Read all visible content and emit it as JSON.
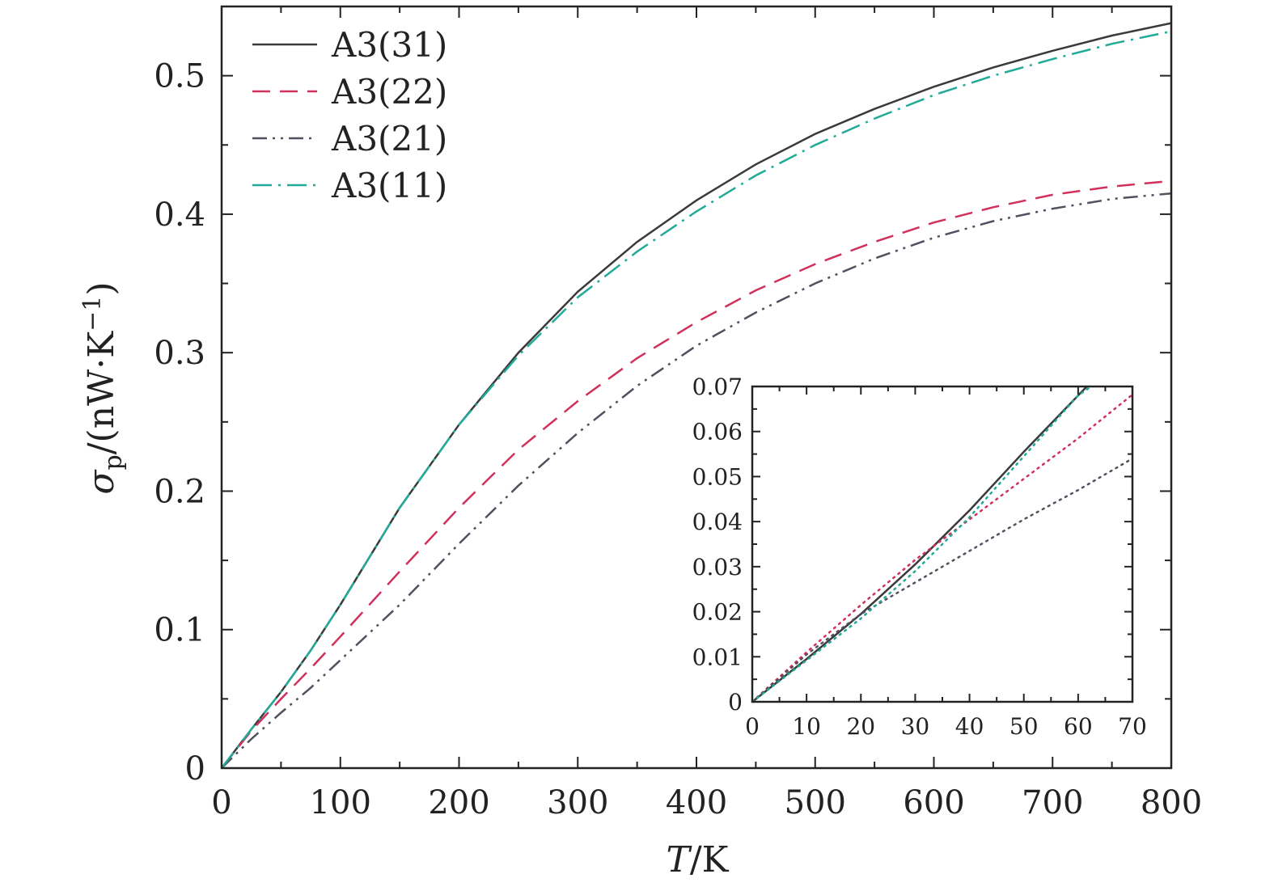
{
  "chart_data": [
    {
      "type": "line",
      "xlabel": {
        "italic": "T",
        "rest": "/K"
      },
      "ylabel": {
        "prefix": "σ",
        "subscript": "p",
        "unit": "/(nW·K",
        "sup": "−1",
        "close": ")"
      },
      "xlim": [
        0,
        800
      ],
      "ylim": [
        0,
        0.55
      ],
      "xticks": [
        "0",
        "100",
        "200",
        "300",
        "400",
        "500",
        "600",
        "700",
        "800"
      ],
      "yticks": [
        "0",
        "0.1",
        "0.2",
        "0.3",
        "0.4",
        "0.5"
      ],
      "legend_position": "top-left",
      "series": [
        {
          "name": "A3(31)",
          "color": "#3a3a3a",
          "style": "solid",
          "x": [
            0,
            25,
            50,
            75,
            100,
            150,
            200,
            250,
            300,
            350,
            400,
            450,
            500,
            550,
            600,
            650,
            700,
            750,
            800
          ],
          "y": [
            0,
            0.028,
            0.055,
            0.085,
            0.118,
            0.188,
            0.248,
            0.3,
            0.344,
            0.38,
            0.41,
            0.436,
            0.458,
            0.476,
            0.492,
            0.506,
            0.518,
            0.529,
            0.538
          ]
        },
        {
          "name": "A3(22)",
          "color": "#d0305a",
          "style": "dashed",
          "x": [
            0,
            25,
            50,
            75,
            100,
            150,
            200,
            250,
            300,
            350,
            400,
            450,
            500,
            550,
            600,
            650,
            700,
            750,
            800
          ],
          "y": [
            0,
            0.027,
            0.05,
            0.072,
            0.095,
            0.142,
            0.188,
            0.23,
            0.265,
            0.296,
            0.322,
            0.345,
            0.364,
            0.38,
            0.394,
            0.405,
            0.414,
            0.42,
            0.424
          ]
        },
        {
          "name": "A3(21)",
          "color": "#505060",
          "style": "dash-dot-dot",
          "x": [
            0,
            25,
            50,
            75,
            100,
            150,
            200,
            250,
            300,
            350,
            400,
            450,
            500,
            550,
            600,
            650,
            700,
            750,
            800
          ],
          "y": [
            0,
            0.021,
            0.04,
            0.058,
            0.078,
            0.118,
            0.162,
            0.204,
            0.242,
            0.276,
            0.305,
            0.329,
            0.35,
            0.368,
            0.383,
            0.395,
            0.404,
            0.411,
            0.415
          ]
        },
        {
          "name": "A3(11)",
          "color": "#22aa99",
          "style": "dash-dot",
          "x": [
            0,
            25,
            50,
            75,
            100,
            150,
            200,
            250,
            300,
            350,
            400,
            450,
            500,
            550,
            600,
            650,
            700,
            750,
            800
          ],
          "y": [
            0,
            0.028,
            0.055,
            0.085,
            0.118,
            0.188,
            0.248,
            0.298,
            0.34,
            0.373,
            0.402,
            0.428,
            0.45,
            0.469,
            0.486,
            0.5,
            0.512,
            0.523,
            0.532
          ]
        }
      ]
    },
    {
      "type": "line",
      "role": "inset",
      "xlim": [
        0,
        70
      ],
      "ylim": [
        0,
        0.07
      ],
      "xticks": [
        "0",
        "10",
        "20",
        "30",
        "40",
        "50",
        "60",
        "70"
      ],
      "yticks": [
        "0",
        "0.01",
        "0.02",
        "0.03",
        "0.04",
        "0.05",
        "0.06",
        "0.07"
      ],
      "series": [
        {
          "color": "#3a3a3a",
          "style": "solid",
          "x": [
            0,
            10,
            20,
            30,
            40,
            50,
            60,
            62
          ],
          "y": [
            0,
            0.0095,
            0.0195,
            0.0305,
            0.0425,
            0.0555,
            0.068,
            0.0705
          ]
        },
        {
          "color": "#d0305a",
          "style": "dotted",
          "x": [
            0,
            10,
            20,
            30,
            40,
            50,
            60,
            70
          ],
          "y": [
            0,
            0.011,
            0.0215,
            0.0315,
            0.0405,
            0.0495,
            0.0585,
            0.0682
          ]
        },
        {
          "color": "#505060",
          "style": "dotted",
          "x": [
            0,
            10,
            20,
            30,
            40,
            50,
            60,
            70
          ],
          "y": [
            0,
            0.0105,
            0.0195,
            0.0265,
            0.0335,
            0.0405,
            0.047,
            0.054
          ]
        },
        {
          "color": "#22aa99",
          "style": "dotted",
          "x": [
            0,
            10,
            20,
            30,
            40,
            50,
            60,
            63
          ],
          "y": [
            0,
            0.0092,
            0.0185,
            0.029,
            0.041,
            0.0545,
            0.068,
            0.0705
          ]
        }
      ]
    }
  ]
}
